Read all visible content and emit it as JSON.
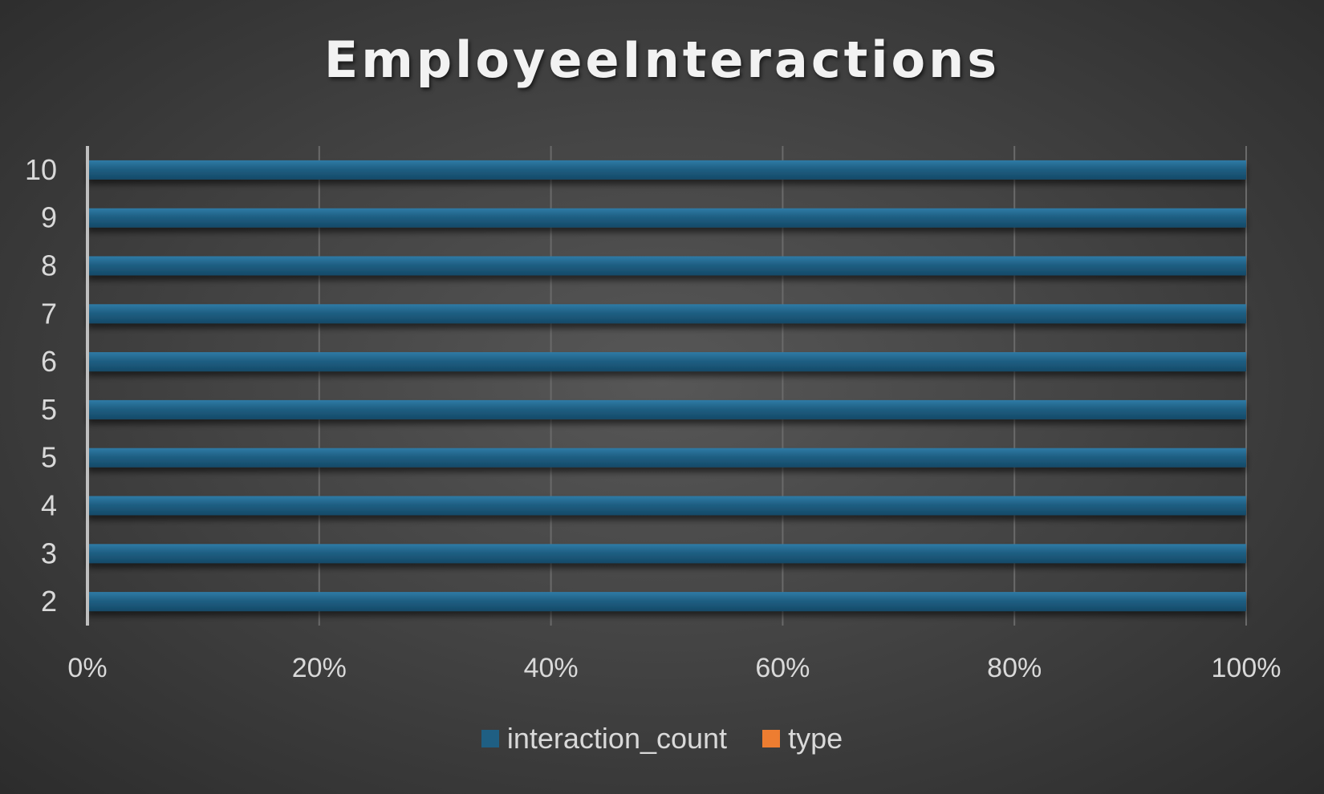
{
  "chart_data": {
    "type": "bar",
    "orientation": "horizontal",
    "stacking": "percent",
    "title": "EmployeeInteractions",
    "categories": [
      "10",
      "9",
      "8",
      "7",
      "6",
      "5",
      "5",
      "4",
      "3",
      "2"
    ],
    "series": [
      {
        "name": "interaction_count",
        "color": "#1f5f83",
        "values": [
          100,
          100,
          100,
          100,
          100,
          100,
          100,
          100,
          100,
          100
        ]
      },
      {
        "name": "type",
        "color": "#ed7d31",
        "values": [
          0,
          0,
          0,
          0,
          0,
          0,
          0,
          0,
          0,
          0
        ]
      }
    ],
    "x_ticks": [
      "0%",
      "20%",
      "40%",
      "60%",
      "80%",
      "100%"
    ],
    "xlim": [
      0,
      100
    ],
    "grid": true,
    "legend_position": "bottom"
  }
}
